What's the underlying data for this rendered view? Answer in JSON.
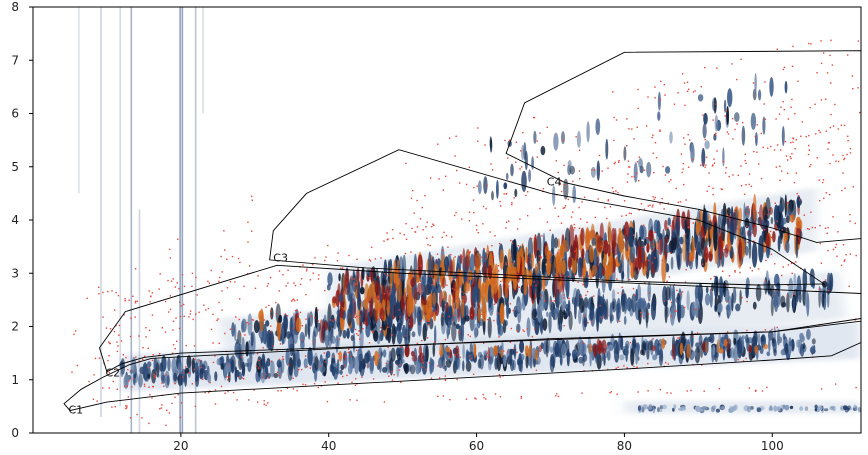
{
  "chart_data": {
    "type": "heatmap",
    "title": "",
    "xlabel": "",
    "ylabel": "",
    "xlim": [
      0,
      112
    ],
    "ylim": [
      0,
      8
    ],
    "x_ticks": [
      20,
      40,
      60,
      80,
      100
    ],
    "y_ticks": [
      0,
      1,
      2,
      3,
      4,
      5,
      6,
      7,
      8
    ],
    "grid": false,
    "legend": "none",
    "colors": {
      "low": "#c8d4e3",
      "mid": "#1f3a64",
      "dark": "#0e1c33",
      "high": "#d2691e",
      "peak": "#8b1a1a",
      "scatter": "#e8443a",
      "polygon": "#000000"
    },
    "regions": [
      {
        "name": "C1",
        "label_at": [
          4.8,
          0.42
        ],
        "points": [
          [
            4.2,
            0.55
          ],
          [
            6.5,
            0.82
          ],
          [
            9.5,
            1.05
          ],
          [
            13,
            1.28
          ],
          [
            16,
            1.4
          ],
          [
            40,
            1.58
          ],
          [
            70,
            1.77
          ],
          [
            100,
            1.9
          ],
          [
            112,
            2.15
          ],
          [
            112,
            1.7
          ],
          [
            108,
            1.45
          ],
          [
            100,
            1.37
          ],
          [
            80,
            1.2
          ],
          [
            60,
            1.05
          ],
          [
            40,
            0.9
          ],
          [
            20,
            0.75
          ],
          [
            10,
            0.58
          ],
          [
            5,
            0.42
          ]
        ]
      },
      {
        "name": "C2",
        "label_at": [
          9.8,
          1.12
        ],
        "points": [
          [
            9.0,
            1.6
          ],
          [
            12.5,
            2.28
          ],
          [
            33,
            3.15
          ],
          [
            50,
            3.0
          ],
          [
            80,
            2.82
          ],
          [
            112,
            2.62
          ],
          [
            112,
            2.1
          ],
          [
            100,
            1.9
          ],
          [
            80,
            1.8
          ],
          [
            60,
            1.7
          ],
          [
            40,
            1.6
          ],
          [
            20,
            1.5
          ],
          [
            15,
            1.42
          ],
          [
            12,
            1.3
          ],
          [
            10,
            1.15
          ]
        ]
      },
      {
        "name": "C3",
        "label_at": [
          32.5,
          3.28
        ],
        "points": [
          [
            32,
            3.25
          ],
          [
            32.5,
            3.8
          ],
          [
            37,
            4.5
          ],
          [
            49.5,
            5.32
          ],
          [
            70,
            4.5
          ],
          [
            90,
            4.0
          ],
          [
            100,
            3.45
          ],
          [
            107,
            2.8
          ],
          [
            98,
            2.78
          ],
          [
            80,
            2.85
          ],
          [
            60,
            3.0
          ],
          [
            45,
            3.1
          ]
        ]
      },
      {
        "name": "C4",
        "label_at": [
          69.5,
          4.7
        ],
        "points": [
          [
            64,
            5.25
          ],
          [
            66.5,
            6.2
          ],
          [
            80,
            7.15
          ],
          [
            112,
            7.18
          ],
          [
            112,
            3.65
          ],
          [
            106,
            3.58
          ],
          [
            100,
            3.85
          ],
          [
            90,
            4.2
          ],
          [
            80,
            4.45
          ],
          [
            72,
            4.7
          ]
        ]
      }
    ],
    "region_labels": [
      "C1",
      "C2",
      "C3",
      "C4"
    ]
  }
}
